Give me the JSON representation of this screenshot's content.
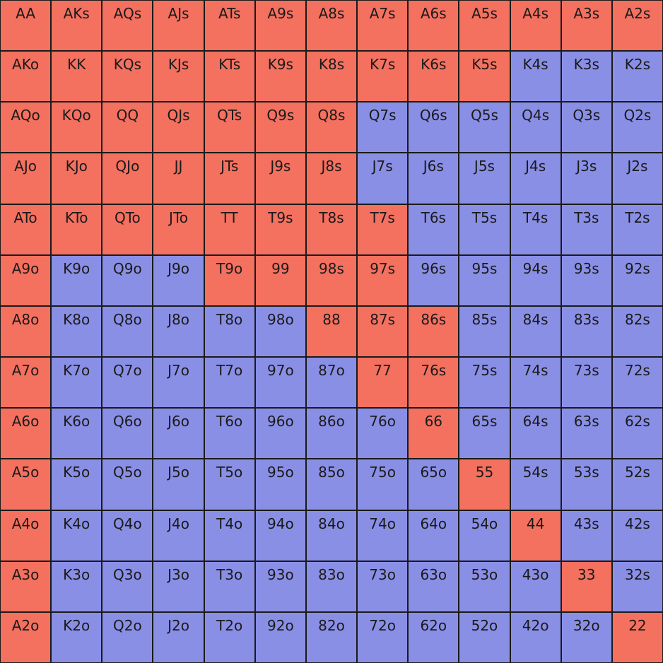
{
  "table": {
    "rows": [
      [
        "AA",
        "AKs",
        "AQs",
        "AJs",
        "ATs",
        "A9s",
        "A8s",
        "A7s",
        "A6s",
        "A5s",
        "A4s",
        "A3s",
        "A2s"
      ],
      [
        "AKo",
        "KK",
        "KQs",
        "KJs",
        "KTs",
        "K9s",
        "K8s",
        "K7s",
        "K6s",
        "K5s",
        "K4s",
        "K3s",
        "K2s"
      ],
      [
        "AQo",
        "KQo",
        "QQ",
        "QJs",
        "QTs",
        "Q9s",
        "Q8s",
        "Q7s",
        "Q6s",
        "Q5s",
        "Q4s",
        "Q3s",
        "Q2s"
      ],
      [
        "AJo",
        "KJo",
        "QJo",
        "JJ",
        "JTs",
        "J9s",
        "J8s",
        "J7s",
        "J6s",
        "J5s",
        "J4s",
        "J3s",
        "J2s"
      ],
      [
        "ATo",
        "KTo",
        "QTo",
        "JTo",
        "TT",
        "T9s",
        "T8s",
        "T7s",
        "T6s",
        "T5s",
        "T4s",
        "T3s",
        "T2s"
      ],
      [
        "A9o",
        "K9o",
        "Q9o",
        "J9o",
        "T9o",
        "99",
        "98s",
        "97s",
        "96s",
        "95s",
        "94s",
        "93s",
        "92s"
      ],
      [
        "A8o",
        "K8o",
        "Q8o",
        "J8o",
        "T8o",
        "98o",
        "88",
        "87s",
        "86s",
        "85s",
        "84s",
        "83s",
        "82s"
      ],
      [
        "A7o",
        "K7o",
        "Q7o",
        "J7o",
        "T7o",
        "97o",
        "87o",
        "77",
        "76s",
        "75s",
        "74s",
        "73s",
        "72s"
      ],
      [
        "A6o",
        "K6o",
        "Q6o",
        "J6o",
        "T6o",
        "96o",
        "86o",
        "76o",
        "66",
        "65s",
        "64s",
        "63s",
        "62s"
      ],
      [
        "A5o",
        "K5o",
        "Q5o",
        "J5o",
        "T5o",
        "95o",
        "85o",
        "75o",
        "65o",
        "55",
        "54s",
        "53s",
        "52s"
      ],
      [
        "A4o",
        "K4o",
        "Q4o",
        "J4o",
        "T4o",
        "94o",
        "84o",
        "74o",
        "64o",
        "54o",
        "44",
        "43s",
        "42s"
      ],
      [
        "A3o",
        "K3o",
        "Q3o",
        "J3o",
        "T3o",
        "93o",
        "83o",
        "73o",
        "63o",
        "53o",
        "43o",
        "33",
        "32s"
      ],
      [
        "A2o",
        "K2o",
        "Q2o",
        "J2o",
        "T2o",
        "92o",
        "82o",
        "72o",
        "62o",
        "52o",
        "42o",
        "32o",
        "22"
      ]
    ],
    "colors": [
      [
        "#f4705f",
        "#f4705f",
        "#f4705f",
        "#f4705f",
        "#f4705f",
        "#f4705f",
        "#f4705f",
        "#f4705f",
        "#f4705f",
        "#f4705f",
        "#f4705f",
        "#f4705f",
        "#f4705f"
      ],
      [
        "#f4705f",
        "#f4705f",
        "#f4705f",
        "#f4705f",
        "#f4705f",
        "#f4705f",
        "#f4705f",
        "#f4705f",
        "#f4705f",
        "#f4705f",
        "#8a8fe6",
        "#8a8fe6",
        "#8a8fe6"
      ],
      [
        "#f4705f",
        "#f4705f",
        "#f4705f",
        "#f4705f",
        "#f4705f",
        "#f4705f",
        "#f4705f",
        "#8a8fe6",
        "#8a8fe6",
        "#8a8fe6",
        "#8a8fe6",
        "#8a8fe6",
        "#8a8fe6"
      ],
      [
        "#f4705f",
        "#f4705f",
        "#f4705f",
        "#f4705f",
        "#f4705f",
        "#f4705f",
        "#f4705f",
        "#8a8fe6",
        "#8a8fe6",
        "#8a8fe6",
        "#8a8fe6",
        "#8a8fe6",
        "#8a8fe6"
      ],
      [
        "#f4705f",
        "#f4705f",
        "#f4705f",
        "#f4705f",
        "#f4705f",
        "#f4705f",
        "#f4705f",
        "#f4705f",
        "#8a8fe6",
        "#8a8fe6",
        "#8a8fe6",
        "#8a8fe6",
        "#8a8fe6"
      ],
      [
        "#f4705f",
        "#8a8fe6",
        "#8a8fe6",
        "#8a8fe6",
        "#f4705f",
        "#f4705f",
        "#f4705f",
        "#f4705f",
        "#8a8fe6",
        "#8a8fe6",
        "#8a8fe6",
        "#8a8fe6",
        "#8a8fe6"
      ],
      [
        "#f4705f",
        "#8a8fe6",
        "#8a8fe6",
        "#8a8fe6",
        "#8a8fe6",
        "#8a8fe6",
        "#f4705f",
        "#f4705f",
        "#f4705f",
        "#8a8fe6",
        "#8a8fe6",
        "#8a8fe6",
        "#8a8fe6"
      ],
      [
        "#f4705f",
        "#8a8fe6",
        "#8a8fe6",
        "#8a8fe6",
        "#8a8fe6",
        "#8a8fe6",
        "#8a8fe6",
        "#f4705f",
        "#f4705f",
        "#8a8fe6",
        "#8a8fe6",
        "#8a8fe6",
        "#8a8fe6"
      ],
      [
        "#f4705f",
        "#8a8fe6",
        "#8a8fe6",
        "#8a8fe6",
        "#8a8fe6",
        "#8a8fe6",
        "#8a8fe6",
        "#8a8fe6",
        "#f4705f",
        "#8a8fe6",
        "#8a8fe6",
        "#8a8fe6",
        "#8a8fe6"
      ],
      [
        "#f4705f",
        "#8a8fe6",
        "#8a8fe6",
        "#8a8fe6",
        "#8a8fe6",
        "#8a8fe6",
        "#8a8fe6",
        "#8a8fe6",
        "#8a8fe6",
        "#f4705f",
        "#8a8fe6",
        "#8a8fe6",
        "#8a8fe6"
      ],
      [
        "#f4705f",
        "#8a8fe6",
        "#8a8fe6",
        "#8a8fe6",
        "#8a8fe6",
        "#8a8fe6",
        "#8a8fe6",
        "#8a8fe6",
        "#8a8fe6",
        "#8a8fe6",
        "#f4705f",
        "#8a8fe6",
        "#8a8fe6"
      ],
      [
        "#f4705f",
        "#8a8fe6",
        "#8a8fe6",
        "#8a8fe6",
        "#8a8fe6",
        "#8a8fe6",
        "#8a8fe6",
        "#8a8fe6",
        "#8a8fe6",
        "#8a8fe6",
        "#8a8fe6",
        "#f4705f",
        "#8a8fe6"
      ],
      [
        "#f4705f",
        "#8a8fe6",
        "#8a8fe6",
        "#8a8fe6",
        "#8a8fe6",
        "#8a8fe6",
        "#8a8fe6",
        "#8a8fe6",
        "#8a8fe6",
        "#8a8fe6",
        "#8a8fe6",
        "#8a8fe6",
        "#f4705f"
      ]
    ]
  }
}
